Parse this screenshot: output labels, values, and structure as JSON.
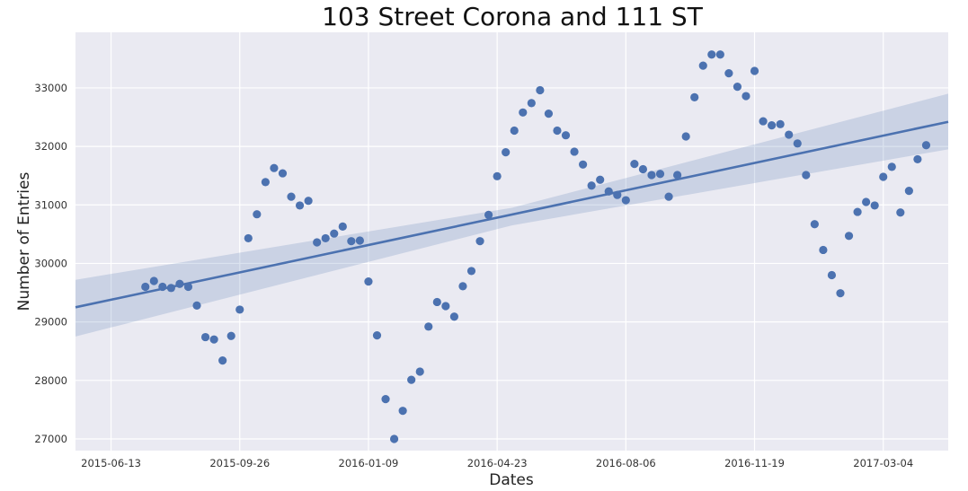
{
  "chart_data": {
    "type": "scatter",
    "title": "103 Street Corona and 111 ST",
    "xlabel": "Dates",
    "ylabel": "Number of Entries",
    "x_tick_labels": [
      "2015-06-13",
      "2015-09-26",
      "2016-01-09",
      "2016-04-23",
      "2016-08-06",
      "2016-11-19",
      "2017-03-04"
    ],
    "y_ticks": [
      27000,
      28000,
      29000,
      30000,
      31000,
      32000,
      33000
    ],
    "xlim": [
      "2015-05-15",
      "2017-04-26"
    ],
    "ylim": [
      26800,
      33950
    ],
    "grid": true,
    "regression_line": {
      "start": [
        "2015-05-15",
        29250
      ],
      "end": [
        "2017-04-26",
        32420
      ]
    },
    "confidence_band": {
      "upper": [
        [
          "2015-05-15",
          29720
        ],
        [
          "2016-05-05",
          30950
        ],
        [
          "2017-04-26",
          32900
        ]
      ],
      "lower": [
        [
          "2015-05-15",
          28750
        ],
        [
          "2016-05-05",
          30650
        ],
        [
          "2017-04-26",
          31950
        ]
      ]
    },
    "series": [
      {
        "points": [
          [
            "2015-07-11",
            29600
          ],
          [
            "2015-07-18",
            29700
          ],
          [
            "2015-07-25",
            29600
          ],
          [
            "2015-08-01",
            29580
          ],
          [
            "2015-08-08",
            29650
          ],
          [
            "2015-08-15",
            29600
          ],
          [
            "2015-08-22",
            29280
          ],
          [
            "2015-08-29",
            28740
          ],
          [
            "2015-09-05",
            28700
          ],
          [
            "2015-09-12",
            28340
          ],
          [
            "2015-09-19",
            28760
          ],
          [
            "2015-09-26",
            29210
          ],
          [
            "2015-10-03",
            30430
          ],
          [
            "2015-10-10",
            30840
          ],
          [
            "2015-10-17",
            31390
          ],
          [
            "2015-10-24",
            31630
          ],
          [
            "2015-10-31",
            31540
          ],
          [
            "2015-11-07",
            31140
          ],
          [
            "2015-11-14",
            30990
          ],
          [
            "2015-11-21",
            31070
          ],
          [
            "2015-11-28",
            30360
          ],
          [
            "2015-12-05",
            30430
          ],
          [
            "2015-12-12",
            30510
          ],
          [
            "2015-12-19",
            30630
          ],
          [
            "2015-12-26",
            30380
          ],
          [
            "2016-01-02",
            30390
          ],
          [
            "2016-01-09",
            29690
          ],
          [
            "2016-01-16",
            28770
          ],
          [
            "2016-01-23",
            27680
          ],
          [
            "2016-01-30",
            27000
          ],
          [
            "2016-02-06",
            27480
          ],
          [
            "2016-02-13",
            28010
          ],
          [
            "2016-02-20",
            28150
          ],
          [
            "2016-02-27",
            28920
          ],
          [
            "2016-03-05",
            29340
          ],
          [
            "2016-03-12",
            29270
          ],
          [
            "2016-03-19",
            29090
          ],
          [
            "2016-03-26",
            29610
          ],
          [
            "2016-04-02",
            29870
          ],
          [
            "2016-04-09",
            30380
          ],
          [
            "2016-04-16",
            30830
          ],
          [
            "2016-04-23",
            31490
          ],
          [
            "2016-04-30",
            31900
          ],
          [
            "2016-05-07",
            32270
          ],
          [
            "2016-05-14",
            32580
          ],
          [
            "2016-05-21",
            32740
          ],
          [
            "2016-05-28",
            32960
          ],
          [
            "2016-06-04",
            32560
          ],
          [
            "2016-06-11",
            32270
          ],
          [
            "2016-06-18",
            32190
          ],
          [
            "2016-06-25",
            31910
          ],
          [
            "2016-07-02",
            31690
          ],
          [
            "2016-07-09",
            31330
          ],
          [
            "2016-07-16",
            31430
          ],
          [
            "2016-07-23",
            31230
          ],
          [
            "2016-07-30",
            31170
          ],
          [
            "2016-08-06",
            31080
          ],
          [
            "2016-08-13",
            31700
          ],
          [
            "2016-08-20",
            31610
          ],
          [
            "2016-08-27",
            31510
          ],
          [
            "2016-09-03",
            31530
          ],
          [
            "2016-09-10",
            31140
          ],
          [
            "2016-09-17",
            31510
          ],
          [
            "2016-09-24",
            32170
          ],
          [
            "2016-10-01",
            32840
          ],
          [
            "2016-10-08",
            33380
          ],
          [
            "2016-10-15",
            33570
          ],
          [
            "2016-10-22",
            33570
          ],
          [
            "2016-10-29",
            33250
          ],
          [
            "2016-11-05",
            33020
          ],
          [
            "2016-11-12",
            32860
          ],
          [
            "2016-11-19",
            33290
          ],
          [
            "2016-11-26",
            32430
          ],
          [
            "2016-12-03",
            32360
          ],
          [
            "2016-12-10",
            32380
          ],
          [
            "2016-12-17",
            32200
          ],
          [
            "2016-12-24",
            32050
          ],
          [
            "2016-12-31",
            31510
          ],
          [
            "2017-01-07",
            30670
          ],
          [
            "2017-01-14",
            30230
          ],
          [
            "2017-01-21",
            29800
          ],
          [
            "2017-01-28",
            29490
          ],
          [
            "2017-02-04",
            30470
          ],
          [
            "2017-02-11",
            30880
          ],
          [
            "2017-02-18",
            31050
          ],
          [
            "2017-02-25",
            30990
          ],
          [
            "2017-03-04",
            31480
          ],
          [
            "2017-03-11",
            31650
          ],
          [
            "2017-03-18",
            30870
          ],
          [
            "2017-03-25",
            31240
          ],
          [
            "2017-04-01",
            31780
          ],
          [
            "2017-04-08",
            32020
          ]
        ]
      }
    ],
    "colors": {
      "plot_background": "#EAEAF2",
      "grid": "#FFFFFF",
      "points": "#4C72B0",
      "regression_line": "#4C72B0",
      "confidence_band": "#4C72B0"
    }
  }
}
